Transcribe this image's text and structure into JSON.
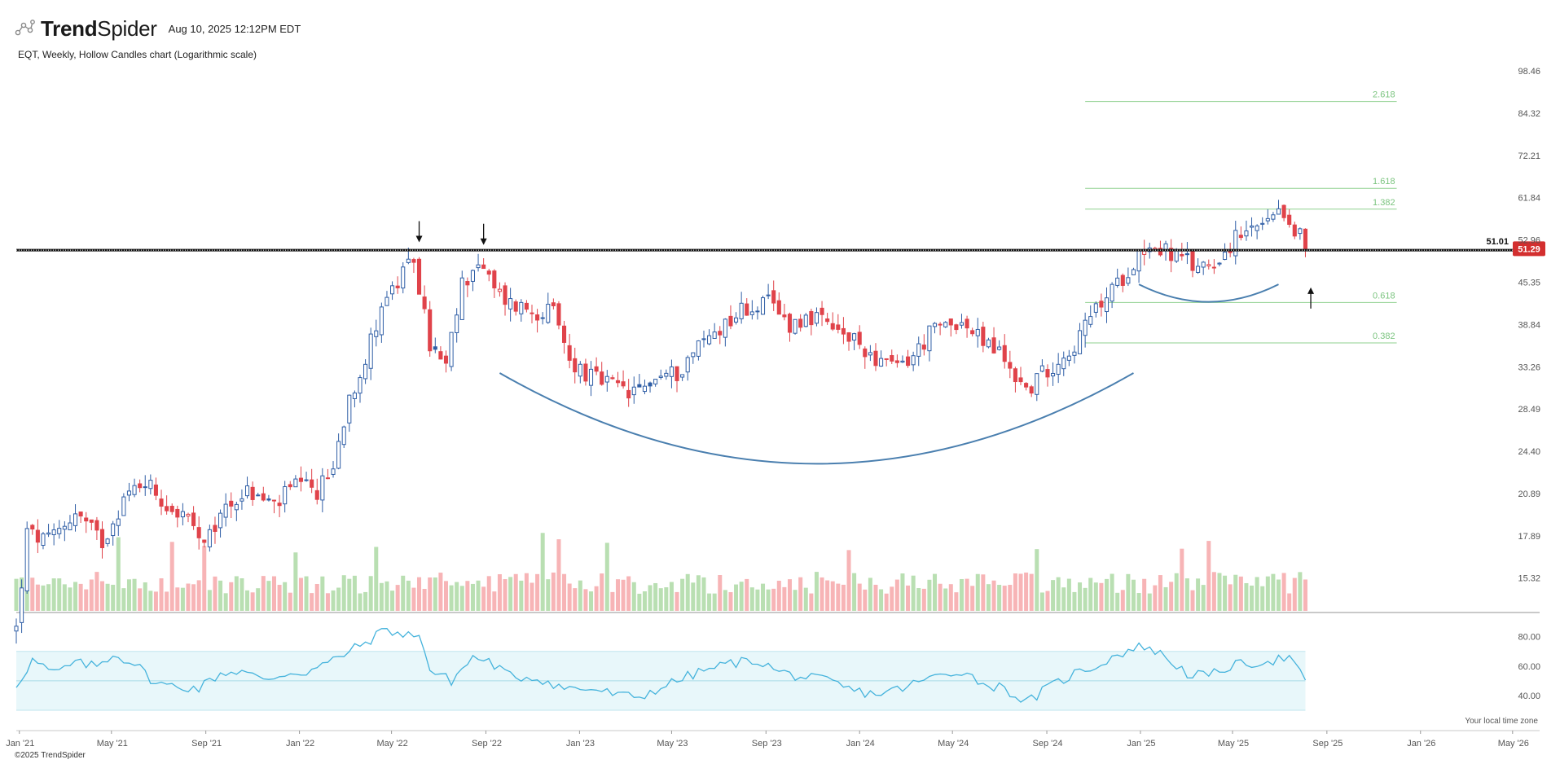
{
  "header": {
    "brand_bold": "Trend",
    "brand_light": "Spider",
    "timestamp": "Aug 10, 2025 12:12PM EDT",
    "subtitle": "EQT, Weekly, Hollow Candles chart (Logarithmic scale)"
  },
  "footer": {
    "copyright": "©2025 TrendSpider",
    "timezone": "Your local time zone"
  },
  "colors": {
    "up": "#2f5ea6",
    "down": "#e0434a",
    "vol_up": "#b9dfb2",
    "vol_down": "#f7b4b6",
    "rsi_line": "#45b3dc",
    "rsi_band": "#e8f7fa",
    "arc": "#4a7faf",
    "fib": "#8fd18f",
    "price_badge": "#d32f2f"
  },
  "chart_data": {
    "type": "candlestick",
    "symbol": "EQT",
    "interval": "Weekly",
    "scale": "log",
    "x_range": [
      "2020-12-28",
      "2026-06-01"
    ],
    "y_range": [
      13.5,
      103
    ],
    "y_ticks": [
      "98.46",
      "84.32",
      "72.21",
      "61.84",
      "52.96",
      "45.35",
      "38.84",
      "33.26",
      "28.49",
      "24.40",
      "20.89",
      "17.89",
      "15.32"
    ],
    "x_ticks": [
      {
        "label": "Jan '21",
        "date": "2021-01-01"
      },
      {
        "label": "May '21",
        "date": "2021-05-01"
      },
      {
        "label": "Sep '21",
        "date": "2021-09-01"
      },
      {
        "label": "Jan '22",
        "date": "2022-01-01"
      },
      {
        "label": "May '22",
        "date": "2022-05-01"
      },
      {
        "label": "Sep '22",
        "date": "2022-09-01"
      },
      {
        "label": "Jan '23",
        "date": "2023-01-01"
      },
      {
        "label": "May '23",
        "date": "2023-05-01"
      },
      {
        "label": "Sep '23",
        "date": "2023-09-01"
      },
      {
        "label": "Jan '24",
        "date": "2024-01-01"
      },
      {
        "label": "May '24",
        "date": "2024-05-01"
      },
      {
        "label": "Sep '24",
        "date": "2024-09-01"
      },
      {
        "label": "Jan '25",
        "date": "2025-01-01"
      },
      {
        "label": "May '25",
        "date": "2025-05-01"
      },
      {
        "label": "Sep '25",
        "date": "2025-09-01"
      },
      {
        "label": "Jan '26",
        "date": "2026-01-01"
      },
      {
        "label": "May '26",
        "date": "2026-05-01"
      }
    ],
    "price_path": [
      {
        "date": "2020-12-28",
        "close": 12.7
      },
      {
        "date": "2021-01-11",
        "close": 18.0
      },
      {
        "date": "2021-02-08",
        "close": 17.5
      },
      {
        "date": "2021-03-15",
        "close": 19.5
      },
      {
        "date": "2021-04-19",
        "close": 17.5
      },
      {
        "date": "2021-05-17",
        "close": 20.5
      },
      {
        "date": "2021-06-14",
        "close": 22.0
      },
      {
        "date": "2021-07-12",
        "close": 20.0
      },
      {
        "date": "2021-08-09",
        "close": 19.0
      },
      {
        "date": "2021-08-30",
        "close": 17.0
      },
      {
        "date": "2021-09-27",
        "close": 20.0
      },
      {
        "date": "2021-10-25",
        "close": 21.0
      },
      {
        "date": "2021-11-29",
        "close": 20.0
      },
      {
        "date": "2021-12-27",
        "close": 21.5
      },
      {
        "date": "2022-01-24",
        "close": 21.0
      },
      {
        "date": "2022-02-14",
        "close": 23.0
      },
      {
        "date": "2022-03-07",
        "close": 30.0
      },
      {
        "date": "2022-03-28",
        "close": 34.0
      },
      {
        "date": "2022-04-18",
        "close": 42.0
      },
      {
        "date": "2022-05-09",
        "close": 45.0
      },
      {
        "date": "2022-05-30",
        "close": 49.5
      },
      {
        "date": "2022-06-20",
        "close": 36.0
      },
      {
        "date": "2022-07-11",
        "close": 33.0
      },
      {
        "date": "2022-08-01",
        "close": 45.0
      },
      {
        "date": "2022-08-22",
        "close": 49.0
      },
      {
        "date": "2022-09-12",
        "close": 44.0
      },
      {
        "date": "2022-10-03",
        "close": 42.0
      },
      {
        "date": "2022-10-31",
        "close": 41.0
      },
      {
        "date": "2022-11-28",
        "close": 40.5
      },
      {
        "date": "2022-12-19",
        "close": 34.0
      },
      {
        "date": "2023-01-16",
        "close": 32.0
      },
      {
        "date": "2023-02-13",
        "close": 31.0
      },
      {
        "date": "2023-03-13",
        "close": 30.0
      },
      {
        "date": "2023-04-10",
        "close": 32.0
      },
      {
        "date": "2023-05-08",
        "close": 32.5
      },
      {
        "date": "2023-06-05",
        "close": 36.0
      },
      {
        "date": "2023-07-03",
        "close": 38.5
      },
      {
        "date": "2023-07-31",
        "close": 41.0
      },
      {
        "date": "2023-09-04",
        "close": 42.0
      },
      {
        "date": "2023-10-02",
        "close": 39.0
      },
      {
        "date": "2023-10-30",
        "close": 40.0
      },
      {
        "date": "2023-11-27",
        "close": 38.0
      },
      {
        "date": "2024-01-01",
        "close": 36.0
      },
      {
        "date": "2024-02-12",
        "close": 33.0
      },
      {
        "date": "2024-03-11",
        "close": 34.5
      },
      {
        "date": "2024-04-01",
        "close": 37.5
      },
      {
        "date": "2024-05-06",
        "close": 39.5
      },
      {
        "date": "2024-06-03",
        "close": 37.0
      },
      {
        "date": "2024-07-01",
        "close": 35.0
      },
      {
        "date": "2024-08-05",
        "close": 30.5
      },
      {
        "date": "2024-09-02",
        "close": 33.0
      },
      {
        "date": "2024-10-07",
        "close": 36.0
      },
      {
        "date": "2024-11-04",
        "close": 41.0
      },
      {
        "date": "2024-12-02",
        "close": 45.0
      },
      {
        "date": "2025-01-06",
        "close": 52.0
      },
      {
        "date": "2025-02-03",
        "close": 51.0
      },
      {
        "date": "2025-03-10",
        "close": 48.0
      },
      {
        "date": "2025-04-07",
        "close": 49.0
      },
      {
        "date": "2025-05-05",
        "close": 53.0
      },
      {
        "date": "2025-06-02",
        "close": 55.0
      },
      {
        "date": "2025-07-07",
        "close": 58.0
      },
      {
        "date": "2025-07-28",
        "close": 54.0
      },
      {
        "date": "2025-08-04",
        "close": 51.29
      }
    ],
    "horizontal_line": {
      "price": 51.01,
      "label": "51.01"
    },
    "last_price": {
      "value": 51.29,
      "label": "51.29"
    },
    "fibonacci": {
      "start_date": "2024-10-21",
      "end_date": "2025-12-01",
      "levels": [
        {
          "label": "2.618",
          "price": 88.0
        },
        {
          "label": "1.618",
          "price": 64.0
        },
        {
          "label": "1.382",
          "price": 59.3
        },
        {
          "label": "0.618",
          "price": 42.1
        },
        {
          "label": "0.382",
          "price": 36.3
        }
      ]
    },
    "annotations": {
      "arrows": [
        {
          "direction": "down",
          "date": "2022-06-06",
          "price": 52.5
        },
        {
          "direction": "down",
          "date": "2022-08-29",
          "price": 52.0
        },
        {
          "direction": "up",
          "date": "2025-08-11",
          "price": 44.5
        }
      ],
      "arcs": [
        {
          "from_date": "2022-09-19",
          "to_date": "2024-12-23",
          "edge_price": 32.5,
          "bottom_price": 23.3
        },
        {
          "from_date": "2024-12-30",
          "to_date": "2025-06-30",
          "edge_price": 45.0,
          "bottom_price": 42.2
        }
      ]
    },
    "volume": {
      "shown": true
    },
    "rsi": {
      "y_range": [
        20,
        92
      ],
      "y_ticks": [
        80,
        60,
        40
      ],
      "band": [
        30,
        70
      ],
      "midline": 50,
      "path": [
        {
          "date": "2020-12-28",
          "value": 47
        },
        {
          "date": "2021-01-18",
          "value": 64
        },
        {
          "date": "2021-02-15",
          "value": 55
        },
        {
          "date": "2021-03-15",
          "value": 62
        },
        {
          "date": "2021-04-12",
          "value": 60
        },
        {
          "date": "2021-05-03",
          "value": 68
        },
        {
          "date": "2021-05-31",
          "value": 62
        },
        {
          "date": "2021-06-28",
          "value": 48
        },
        {
          "date": "2021-07-26",
          "value": 46
        },
        {
          "date": "2021-08-23",
          "value": 45
        },
        {
          "date": "2021-09-20",
          "value": 55
        },
        {
          "date": "2021-10-18",
          "value": 57
        },
        {
          "date": "2021-11-15",
          "value": 50
        },
        {
          "date": "2021-12-13",
          "value": 55
        },
        {
          "date": "2022-01-10",
          "value": 56
        },
        {
          "date": "2022-02-07",
          "value": 62
        },
        {
          "date": "2022-03-07",
          "value": 70
        },
        {
          "date": "2022-04-04",
          "value": 78
        },
        {
          "date": "2022-04-25",
          "value": 86
        },
        {
          "date": "2022-05-16",
          "value": 80
        },
        {
          "date": "2022-06-06",
          "value": 83
        },
        {
          "date": "2022-06-20",
          "value": 57
        },
        {
          "date": "2022-07-18",
          "value": 50
        },
        {
          "date": "2022-08-15",
          "value": 66
        },
        {
          "date": "2022-09-05",
          "value": 63
        },
        {
          "date": "2022-10-03",
          "value": 53
        },
        {
          "date": "2022-11-07",
          "value": 52
        },
        {
          "date": "2022-12-12",
          "value": 45
        },
        {
          "date": "2023-01-23",
          "value": 44
        },
        {
          "date": "2023-02-20",
          "value": 40
        },
        {
          "date": "2023-03-20",
          "value": 39
        },
        {
          "date": "2023-04-24",
          "value": 47
        },
        {
          "date": "2023-05-22",
          "value": 53
        },
        {
          "date": "2023-06-19",
          "value": 58
        },
        {
          "date": "2023-07-17",
          "value": 62
        },
        {
          "date": "2023-08-21",
          "value": 64
        },
        {
          "date": "2023-09-18",
          "value": 56
        },
        {
          "date": "2023-10-23",
          "value": 52
        },
        {
          "date": "2023-11-20",
          "value": 50
        },
        {
          "date": "2023-12-25",
          "value": 43
        },
        {
          "date": "2024-01-22",
          "value": 41
        },
        {
          "date": "2024-02-19",
          "value": 44
        },
        {
          "date": "2024-03-18",
          "value": 49
        },
        {
          "date": "2024-04-15",
          "value": 54
        },
        {
          "date": "2024-05-13",
          "value": 57
        },
        {
          "date": "2024-06-10",
          "value": 48
        },
        {
          "date": "2024-07-08",
          "value": 45
        },
        {
          "date": "2024-08-05",
          "value": 35
        },
        {
          "date": "2024-09-02",
          "value": 45
        },
        {
          "date": "2024-10-07",
          "value": 55
        },
        {
          "date": "2024-11-04",
          "value": 60
        },
        {
          "date": "2024-12-02",
          "value": 68
        },
        {
          "date": "2025-01-06",
          "value": 74
        },
        {
          "date": "2025-02-03",
          "value": 66
        },
        {
          "date": "2025-03-03",
          "value": 55
        },
        {
          "date": "2025-03-31",
          "value": 53
        },
        {
          "date": "2025-04-28",
          "value": 60
        },
        {
          "date": "2025-05-26",
          "value": 62
        },
        {
          "date": "2025-06-23",
          "value": 64
        },
        {
          "date": "2025-07-14",
          "value": 66
        },
        {
          "date": "2025-08-04",
          "value": 49
        }
      ]
    }
  }
}
